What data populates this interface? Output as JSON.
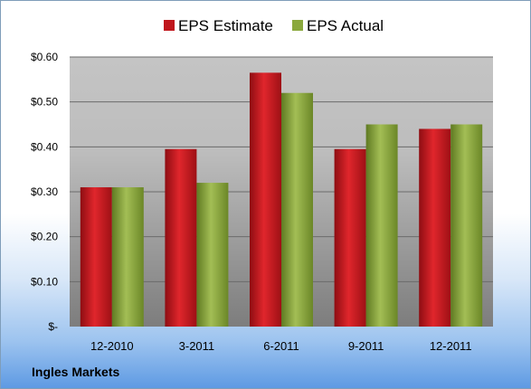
{
  "company_name": "Ingles Markets",
  "chart_data": {
    "type": "bar",
    "categories": [
      "12-2010",
      "3-2011",
      "6-2011",
      "9-2011",
      "12-2011"
    ],
    "series": [
      {
        "name": "EPS Estimate",
        "color": "#c0161c",
        "values": [
          0.31,
          0.395,
          0.565,
          0.395,
          0.44
        ]
      },
      {
        "name": "EPS Actual",
        "color": "#8aa83c",
        "values": [
          0.31,
          0.32,
          0.52,
          0.45,
          0.45
        ]
      }
    ],
    "yticks": [
      "$-",
      "$0.10",
      "$0.20",
      "$0.30",
      "$0.40",
      "$0.50",
      "$0.60"
    ],
    "ylim": [
      0,
      0.6
    ],
    "grid": true,
    "legend_position": "top"
  }
}
